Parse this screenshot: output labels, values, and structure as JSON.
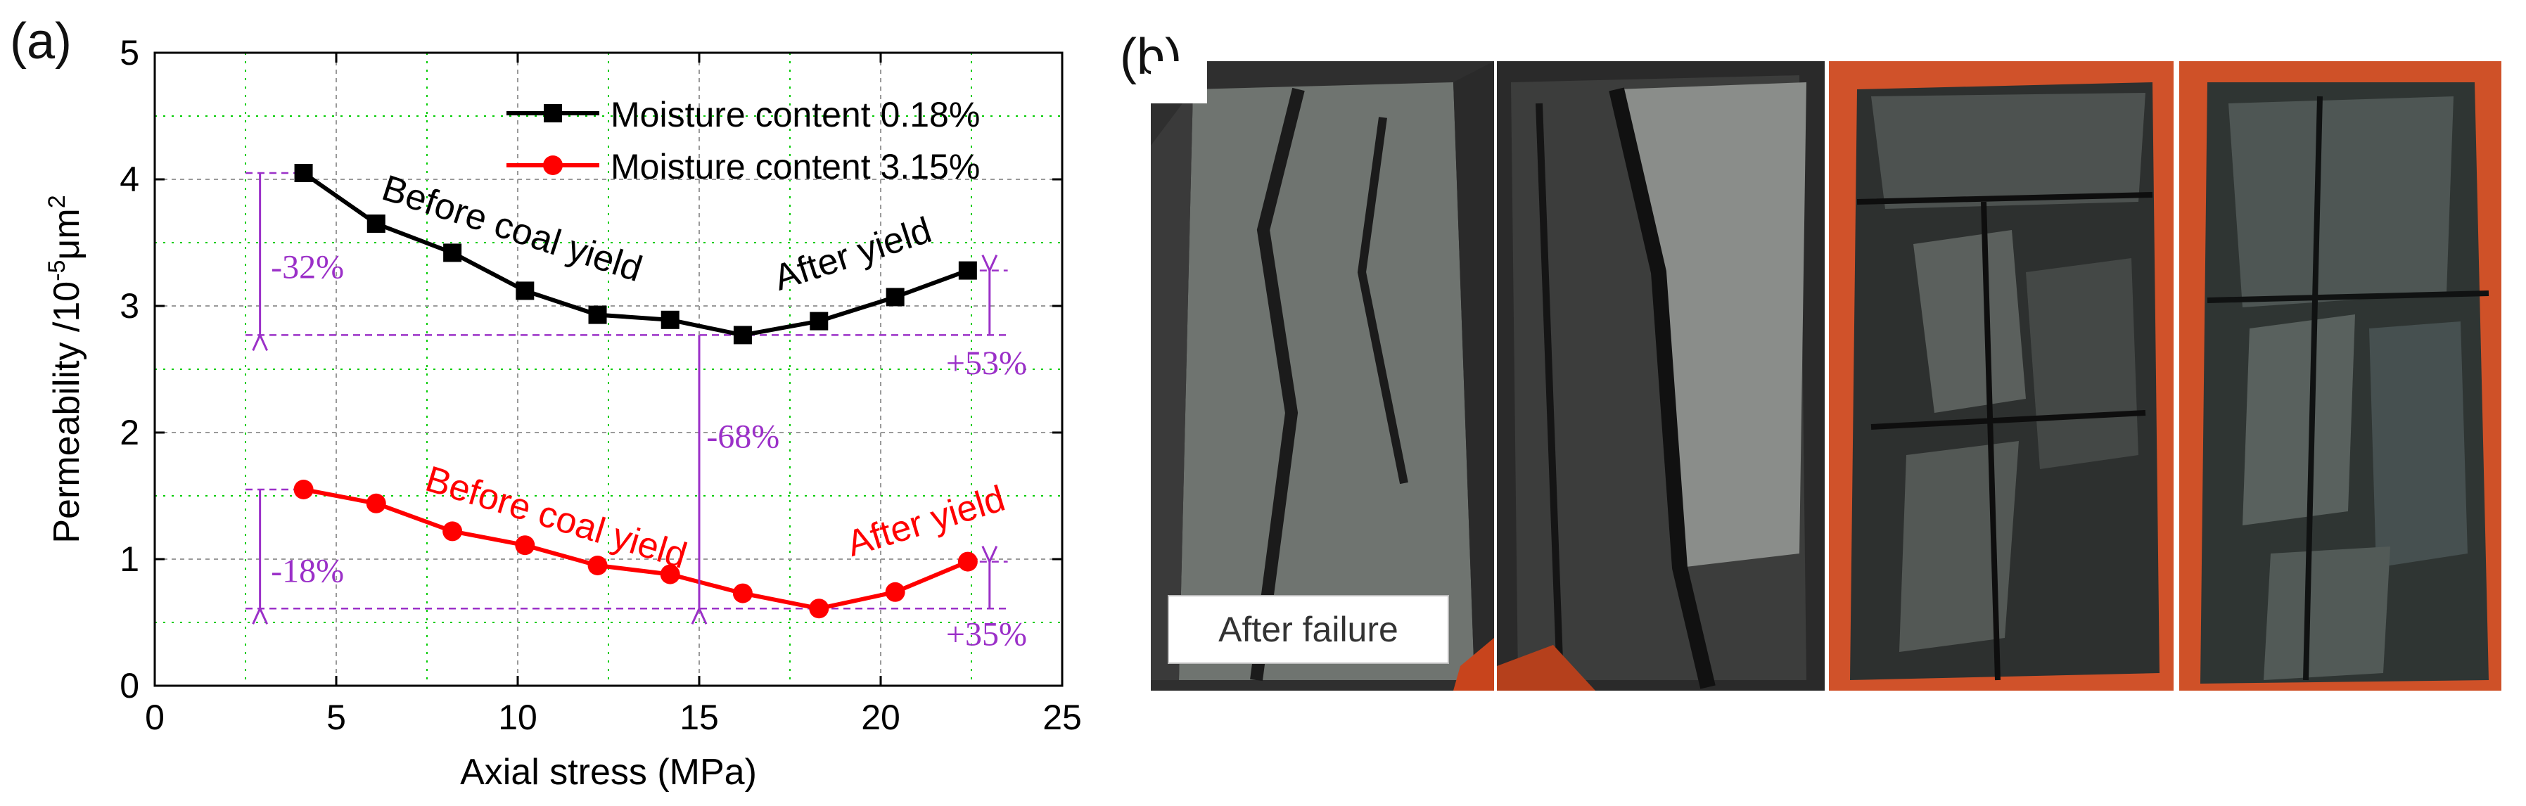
{
  "panel_a_label": "(a)",
  "panel_b_label": "(b)",
  "photo_caption": "After failure",
  "colors": {
    "series1": "#000000",
    "series2": "#ff0000",
    "annotation": "#9b30c8",
    "grid": "#00cc00",
    "ref_grid": "#7a7a7a"
  },
  "chart_data": {
    "type": "line",
    "xlabel": "Axial stress (MPa)",
    "ylabel": "Permeability /10",
    "ylabel_sup1": "-5",
    "ylabel_mid": "μm",
    "ylabel_sup2": "2",
    "xlim": [
      0,
      25
    ],
    "ylim": [
      0,
      5
    ],
    "xticks": [
      0,
      5,
      10,
      15,
      20,
      25
    ],
    "yticks": [
      0,
      1,
      2,
      3,
      4,
      5
    ],
    "grid": true,
    "legend_position": "top-right",
    "series": [
      {
        "name": "Moisture content 0.18%",
        "color": "#000000",
        "marker": "square",
        "x": [
          4.1,
          6.1,
          8.2,
          10.2,
          12.2,
          14.2,
          16.2,
          18.3,
          20.4,
          22.4
        ],
        "y": [
          4.05,
          3.65,
          3.42,
          3.12,
          2.93,
          2.89,
          2.77,
          2.88,
          3.07,
          3.28
        ]
      },
      {
        "name": "Moisture content 3.15%",
        "color": "#ff0000",
        "marker": "circle",
        "x": [
          4.1,
          6.1,
          8.2,
          10.2,
          12.2,
          14.2,
          16.2,
          18.3,
          20.4,
          22.4
        ],
        "y": [
          1.55,
          1.44,
          1.22,
          1.11,
          0.95,
          0.88,
          0.73,
          0.61,
          0.74,
          0.98
        ]
      }
    ],
    "annotations": [
      {
        "text": "Before coal yield",
        "color": "#000000"
      },
      {
        "text": "After yield",
        "color": "#000000"
      },
      {
        "text": "Before coal yield",
        "color": "#ff0000"
      },
      {
        "text": "After yield",
        "color": "#ff0000"
      },
      {
        "text": "-32%",
        "color": "#9b30c8"
      },
      {
        "text": "+53%",
        "color": "#9b30c8"
      },
      {
        "text": "-68%",
        "color": "#9b30c8"
      },
      {
        "text": "-18%",
        "color": "#9b30c8"
      },
      {
        "text": "+35%",
        "color": "#9b30c8"
      }
    ]
  }
}
